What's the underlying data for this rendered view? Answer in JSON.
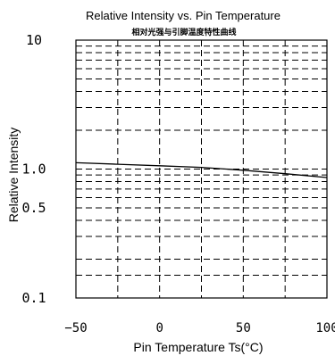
{
  "chart_data": {
    "type": "line",
    "title": "Relative Intensity vs. Pin Temperature",
    "subtitle": "相对光强与引脚温度特性曲线",
    "xlabel": "Pin Temperature Ts(°C)",
    "ylabel": "Relative Intensity",
    "xlim": [
      -50,
      100
    ],
    "ylim": [
      0.1,
      10
    ],
    "yscale": "log",
    "grid": true,
    "x_ticks": [
      -50,
      0,
      50,
      100
    ],
    "x_tick_labels": [
      "−50",
      "0",
      "50",
      "100"
    ],
    "y_ticks": [
      0.1,
      0.5,
      1.0,
      10
    ],
    "y_tick_labels": [
      "0.1",
      "0.5",
      "1.0",
      "10"
    ],
    "x_grid": [
      -25,
      0,
      25,
      50,
      75
    ],
    "y_grid": [
      0.15,
      0.2,
      0.3,
      0.4,
      0.5,
      0.6,
      0.7,
      0.8,
      0.9,
      1.0,
      2,
      3,
      4,
      5,
      6,
      7,
      8,
      9
    ],
    "series": [
      {
        "name": "",
        "x": [
          -50,
          -25,
          0,
          25,
          50,
          75,
          100
        ],
        "y": [
          1.12,
          1.09,
          1.06,
          1.03,
          0.98,
          0.92,
          0.86
        ]
      }
    ]
  }
}
